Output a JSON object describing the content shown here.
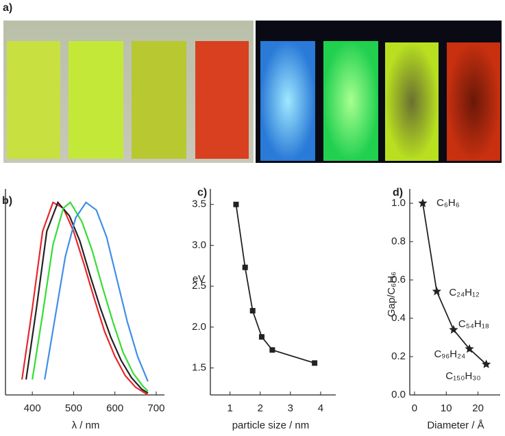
{
  "photo_panel": {
    "label": "a)"
  },
  "chart_data": [
    {
      "type": "line",
      "label": "b)",
      "xlabel": "λ / nm",
      "xlim": [
        335,
        720
      ],
      "ylim": [
        0,
        1.07
      ],
      "xticks": [
        400,
        500,
        600,
        700
      ],
      "series": [
        {
          "color": "#e8262a",
          "x": [
            375,
            400,
            425,
            450,
            475,
            500,
            525,
            550,
            575,
            600,
            625,
            650,
            680
          ],
          "values": [
            0.08,
            0.45,
            0.85,
            1.0,
            0.97,
            0.85,
            0.68,
            0.5,
            0.33,
            0.2,
            0.1,
            0.04,
            0.0
          ]
        },
        {
          "color": "#222222",
          "x": [
            385,
            410,
            435,
            462,
            490,
            515,
            540,
            565,
            590,
            615,
            640,
            665,
            680
          ],
          "values": [
            0.08,
            0.45,
            0.85,
            1.0,
            0.93,
            0.8,
            0.62,
            0.45,
            0.3,
            0.18,
            0.09,
            0.03,
            0.01
          ]
        },
        {
          "color": "#33dd33",
          "x": [
            400,
            425,
            450,
            475,
            492,
            520,
            545,
            570,
            595,
            620,
            645,
            670,
            680
          ],
          "values": [
            0.08,
            0.42,
            0.78,
            0.97,
            1.0,
            0.9,
            0.75,
            0.56,
            0.38,
            0.22,
            0.11,
            0.04,
            0.02
          ]
        },
        {
          "color": "#3d8fe8",
          "x": [
            430,
            455,
            480,
            505,
            530,
            555,
            580,
            605,
            630,
            655,
            680
          ],
          "values": [
            0.08,
            0.4,
            0.72,
            0.92,
            1.0,
            0.96,
            0.82,
            0.6,
            0.38,
            0.2,
            0.07
          ]
        }
      ]
    },
    {
      "type": "line-markers",
      "label": "c)",
      "xlabel": "particle size / nm",
      "ylabel": "eV",
      "xlim": [
        0.35,
        4.5
      ],
      "ylim": [
        1.17,
        3.69
      ],
      "xticks": [
        1,
        2,
        3,
        4
      ],
      "yticks": [
        1.5,
        {
          "value": 2,
          "label": "2.0"
        },
        2.5,
        {
          "value": 3,
          "label": "3.0"
        },
        3.5
      ],
      "series": [
        {
          "color": "#222222",
          "x": [
            1.2,
            1.5,
            1.75,
            2.05,
            2.4,
            3.8
          ],
          "values": [
            3.5,
            2.73,
            2.2,
            1.88,
            1.72,
            1.56
          ]
        }
      ]
    },
    {
      "type": "line-stars",
      "label": "d)",
      "xlabel": "Diameter / Å",
      "ylabel": "Gap/C₆H₆",
      "xlim": [
        -1.5,
        27
      ],
      "ylim": [
        0,
        1.075
      ],
      "xticks": [
        0,
        10,
        20
      ],
      "yticks": [
        {
          "value": 0,
          "label": "0.0"
        },
        0.2,
        0.4,
        0.6,
        0.8,
        {
          "value": 1,
          "label": "1.0"
        }
      ],
      "series": [
        {
          "color": "#222222",
          "x": [
            2.6,
            7,
            12.3,
            17.3,
            22.6
          ],
          "values": [
            1.0,
            0.54,
            0.34,
            0.24,
            0.16
          ],
          "point_labels": [
            "C₆H₆",
            "C₂₄H₁₂",
            "C₅₄H₁₈",
            "C₉₆H₂₄",
            "C₁₅₀H₃₀"
          ]
        }
      ]
    }
  ]
}
